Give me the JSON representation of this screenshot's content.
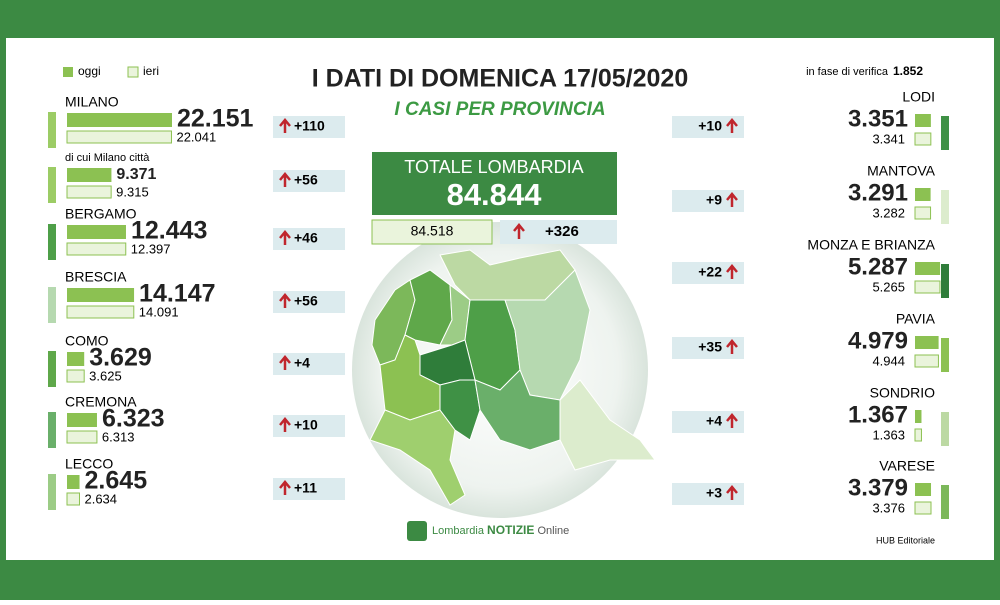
{
  "legend": {
    "today": "oggi",
    "yesterday": "ieri"
  },
  "title": "I DATI DI DOMENICA 17/05/2020",
  "subtitle": "I CASI PER PROVINCIA",
  "verification": {
    "label": "in fase di verifica",
    "value": "1.852"
  },
  "total": {
    "label": "TOTALE LOMBARDIA",
    "oggi": "84.844",
    "ieri": "84.518",
    "delta": "+326"
  },
  "left": [
    {
      "name": "MILANO",
      "oggi": 22151,
      "oggi_label": "22.151",
      "ieri": 22041,
      "ieri_label": "22.041",
      "delta": "+110"
    },
    {
      "name": "di cui Milano città",
      "oggi": 9371,
      "oggi_label": "9.371",
      "ieri": 9315,
      "ieri_label": "9.315",
      "delta": "+56"
    },
    {
      "name": "BERGAMO",
      "oggi": 12443,
      "oggi_label": "12.443",
      "ieri": 12397,
      "ieri_label": "12.397",
      "delta": "+46"
    },
    {
      "name": "BRESCIA",
      "oggi": 14147,
      "oggi_label": "14.147",
      "ieri": 14091,
      "ieri_label": "14.091",
      "delta": "+56"
    },
    {
      "name": "COMO",
      "oggi": 3629,
      "oggi_label": "3.629",
      "ieri": 3625,
      "ieri_label": "3.625",
      "delta": "+4"
    },
    {
      "name": "CREMONA",
      "oggi": 6323,
      "oggi_label": "6.323",
      "ieri": 6313,
      "ieri_label": "6.313",
      "delta": "+10"
    },
    {
      "name": "LECCO",
      "oggi": 2645,
      "oggi_label": "2.645",
      "ieri": 2634,
      "ieri_label": "2.634",
      "delta": "+11"
    }
  ],
  "right": [
    {
      "name": "LODI",
      "oggi": 3351,
      "oggi_label": "3.351",
      "ieri": 3341,
      "ieri_label": "3.341",
      "delta": "+10"
    },
    {
      "name": "MANTOVA",
      "oggi": 3291,
      "oggi_label": "3.291",
      "ieri": 3282,
      "ieri_label": "3.282",
      "delta": "+9"
    },
    {
      "name": "MONZA E BRIANZA",
      "oggi": 5287,
      "oggi_label": "5.287",
      "ieri": 5265,
      "ieri_label": "5.265",
      "delta": "+22"
    },
    {
      "name": "PAVIA",
      "oggi": 4979,
      "oggi_label": "4.979",
      "ieri": 4944,
      "ieri_label": "4.944",
      "delta": "+35"
    },
    {
      "name": "SONDRIO",
      "oggi": 1367,
      "oggi_label": "1.367",
      "ieri": 1363,
      "ieri_label": "1.363",
      "delta": "+4"
    },
    {
      "name": "VARESE",
      "oggi": 3379,
      "oggi_label": "3.379",
      "ieri": 3376,
      "ieri_label": "3.376",
      "delta": "+3"
    }
  ],
  "logo": {
    "brand": "Lombardia",
    "name": "NOTIZIE",
    "suffix": "Online"
  },
  "credit": "HUB Editoriale"
}
